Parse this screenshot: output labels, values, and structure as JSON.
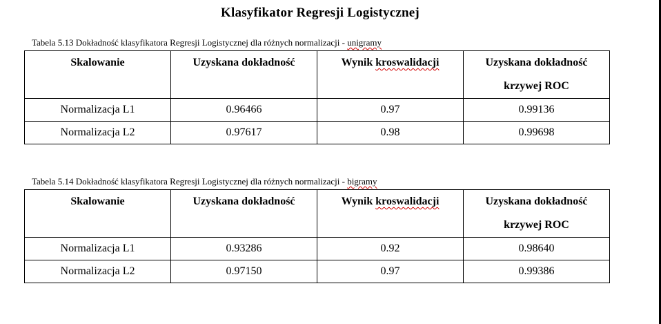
{
  "heading": "Klasyfikator Regresji Logistycznej",
  "tables": [
    {
      "caption_prefix": "Tabela 5.13 Dokładność klasyfikatora Regresji Logistycznej dla różnych normalizacji - ",
      "caption_suffix": "unigramy",
      "headers": {
        "col1": "Skalowanie",
        "col2": "Uzyskana dokładność",
        "col3_a": "Wynik ",
        "col3_b": "kroswalidacji",
        "col4_line1": "Uzyskana dokładność",
        "col4_line2": "krzywej ROC"
      },
      "rows": [
        {
          "scaling": "Normalizacja L1",
          "accuracy": "0.96466",
          "cv": "0.97",
          "roc": "0.99136"
        },
        {
          "scaling": "Normalizacja L2",
          "accuracy": "0.97617",
          "cv": "0.98",
          "roc": "0.99698"
        }
      ]
    },
    {
      "caption_prefix": "Tabela 5.14 Dokładność klasyfikatora Regresji Logistycznej dla różnych normalizacji - ",
      "caption_suffix": "bigramy",
      "headers": {
        "col1": "Skalowanie",
        "col2": "Uzyskana dokładność",
        "col3_a": "Wynik ",
        "col3_b": "kroswalidacji",
        "col4_line1": "Uzyskana dokładność",
        "col4_line2": "krzywej ROC"
      },
      "rows": [
        {
          "scaling": "Normalizacja L1",
          "accuracy": "0.93286",
          "cv": "0.92",
          "roc": "0.98640"
        },
        {
          "scaling": "Normalizacja L2",
          "accuracy": "0.97150",
          "cv": "0.97",
          "roc": "0.99386"
        }
      ]
    }
  ]
}
